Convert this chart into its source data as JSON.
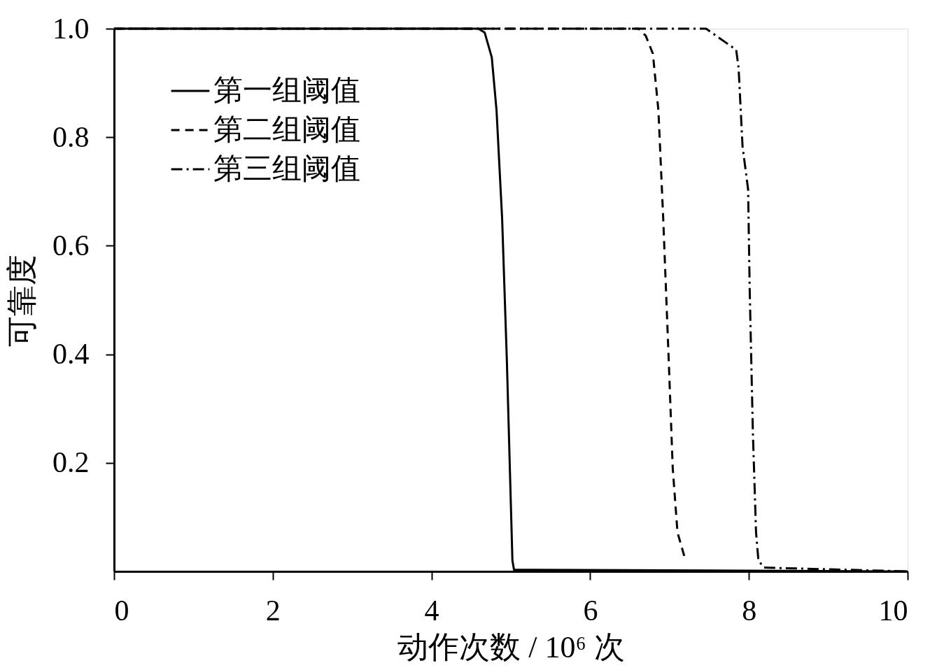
{
  "chart_data": {
    "type": "line",
    "xlabel": "动作次数 / 10⁶ 次",
    "ylabel": "可靠度",
    "xlim": [
      0,
      10
    ],
    "ylim": [
      0,
      1
    ],
    "xticks": [
      0,
      2,
      4,
      6,
      8,
      10
    ],
    "yticks": [
      0.2,
      0.4,
      0.6,
      0.8,
      {
        "value": 1,
        "label": "1.0"
      }
    ],
    "grid": false,
    "legend": "top left",
    "marker": "none",
    "series": [
      {
        "name": "第一组阈值",
        "color": "#000000",
        "line_style": "solid",
        "x": [
          0,
          4.59,
          4.67,
          4.76,
          4.82,
          4.89,
          4.95,
          5.0,
          5.02,
          5.04,
          10
        ],
        "values": [
          1,
          1,
          0.993,
          0.947,
          0.849,
          0.651,
          0.388,
          0.125,
          0.02,
          0.003,
          0
        ]
      },
      {
        "name": "第二组阈值",
        "color": "#000000",
        "line_style": "dashed",
        "x": [
          0,
          6.61,
          6.7,
          6.79,
          6.86,
          6.92,
          6.99,
          7.04,
          7.1,
          7.19
        ],
        "values": [
          1,
          1,
          0.987,
          0.954,
          0.849,
          0.651,
          0.388,
          0.191,
          0.072,
          0.026
        ]
      },
      {
        "name": "第三组阈值",
        "color": "#000000",
        "line_style": "dashdot",
        "x": [
          0,
          7.46,
          7.84,
          7.87,
          7.92,
          7.99,
          8.01,
          8.05,
          8.09,
          8.12,
          8.19,
          10
        ],
        "values": [
          1,
          1,
          0.961,
          0.928,
          0.783,
          0.704,
          0.52,
          0.257,
          0.072,
          0.02,
          0.007,
          0
        ]
      }
    ]
  }
}
